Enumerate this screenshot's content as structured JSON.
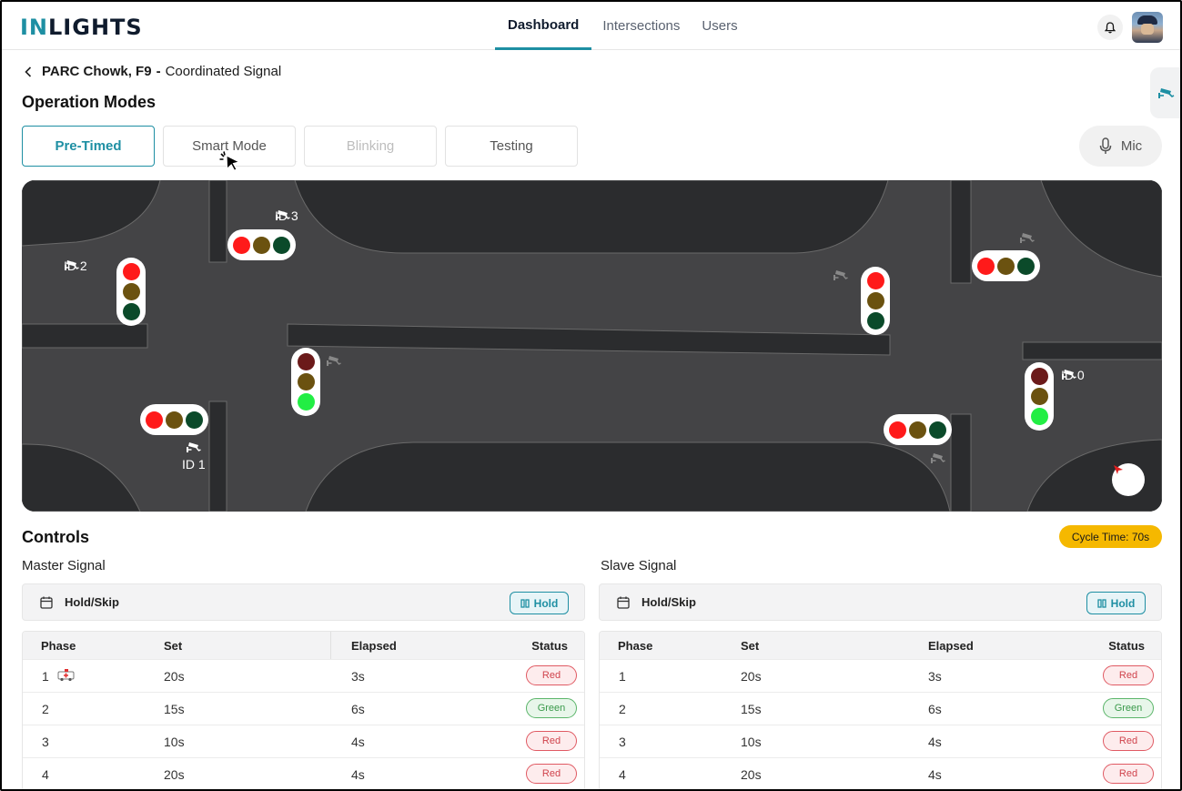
{
  "app": {
    "logo_in": "IN",
    "logo_rest": "LIGHTS"
  },
  "nav": {
    "tabs": [
      {
        "label": "Dashboard",
        "active": true
      },
      {
        "label": "Intersections",
        "active": false
      },
      {
        "label": "Users",
        "active": false
      }
    ]
  },
  "header_icons": [
    "bell-icon",
    "user-avatar"
  ],
  "breadcrumb": {
    "location": "PARC Chowk, F9",
    "separator": "-",
    "signal_type": "Coordinated Signal"
  },
  "operation_modes": {
    "title": "Operation Modes",
    "modes": [
      {
        "label": "Pre-Timed",
        "state": "active"
      },
      {
        "label": "Smart Mode",
        "state": "normal"
      },
      {
        "label": "Blinking",
        "state": "disabled"
      },
      {
        "label": "Testing",
        "state": "normal"
      }
    ],
    "mic_label": "Mic"
  },
  "map": {
    "labels": {
      "id0": "ID 0",
      "id1": "ID 1",
      "id2": "ID 2",
      "id3": "ID 3"
    },
    "colors": {
      "road": "#444446",
      "block": "#2b2c2e",
      "red_on": "#ff1a1a",
      "red_off": "#6b1a1a",
      "yellow_dim": "#6b5210",
      "green_dim": "#0b4a2a",
      "green_on": "#22ee44"
    }
  },
  "controls": {
    "title": "Controls",
    "cycle_time": "Cycle Time: 70s",
    "master": {
      "title": "Master Signal",
      "hold_label": "Hold/Skip",
      "hold_button": "Hold",
      "columns": [
        "Phase",
        "Set",
        "Elapsed",
        "Status"
      ],
      "rows": [
        {
          "phase": "1",
          "set": "20s",
          "elapsed": "3s",
          "status": "Red",
          "ambulance": true
        },
        {
          "phase": "2",
          "set": "15s",
          "elapsed": "6s",
          "status": "Green",
          "ambulance": false
        },
        {
          "phase": "3",
          "set": "10s",
          "elapsed": "4s",
          "status": "Red",
          "ambulance": false
        },
        {
          "phase": "4",
          "set": "20s",
          "elapsed": "4s",
          "status": "Red",
          "ambulance": false
        }
      ]
    },
    "slave": {
      "title": "Slave Signal",
      "hold_label": "Hold/Skip",
      "hold_button": "Hold",
      "columns": [
        "Phase",
        "Set",
        "Elapsed",
        "Status"
      ],
      "rows": [
        {
          "phase": "1",
          "set": "20s",
          "elapsed": "3s",
          "status": "Red"
        },
        {
          "phase": "2",
          "set": "15s",
          "elapsed": "6s",
          "status": "Green"
        },
        {
          "phase": "3",
          "set": "10s",
          "elapsed": "4s",
          "status": "Red"
        },
        {
          "phase": "4",
          "set": "20s",
          "elapsed": "4s",
          "status": "Red"
        }
      ]
    }
  }
}
